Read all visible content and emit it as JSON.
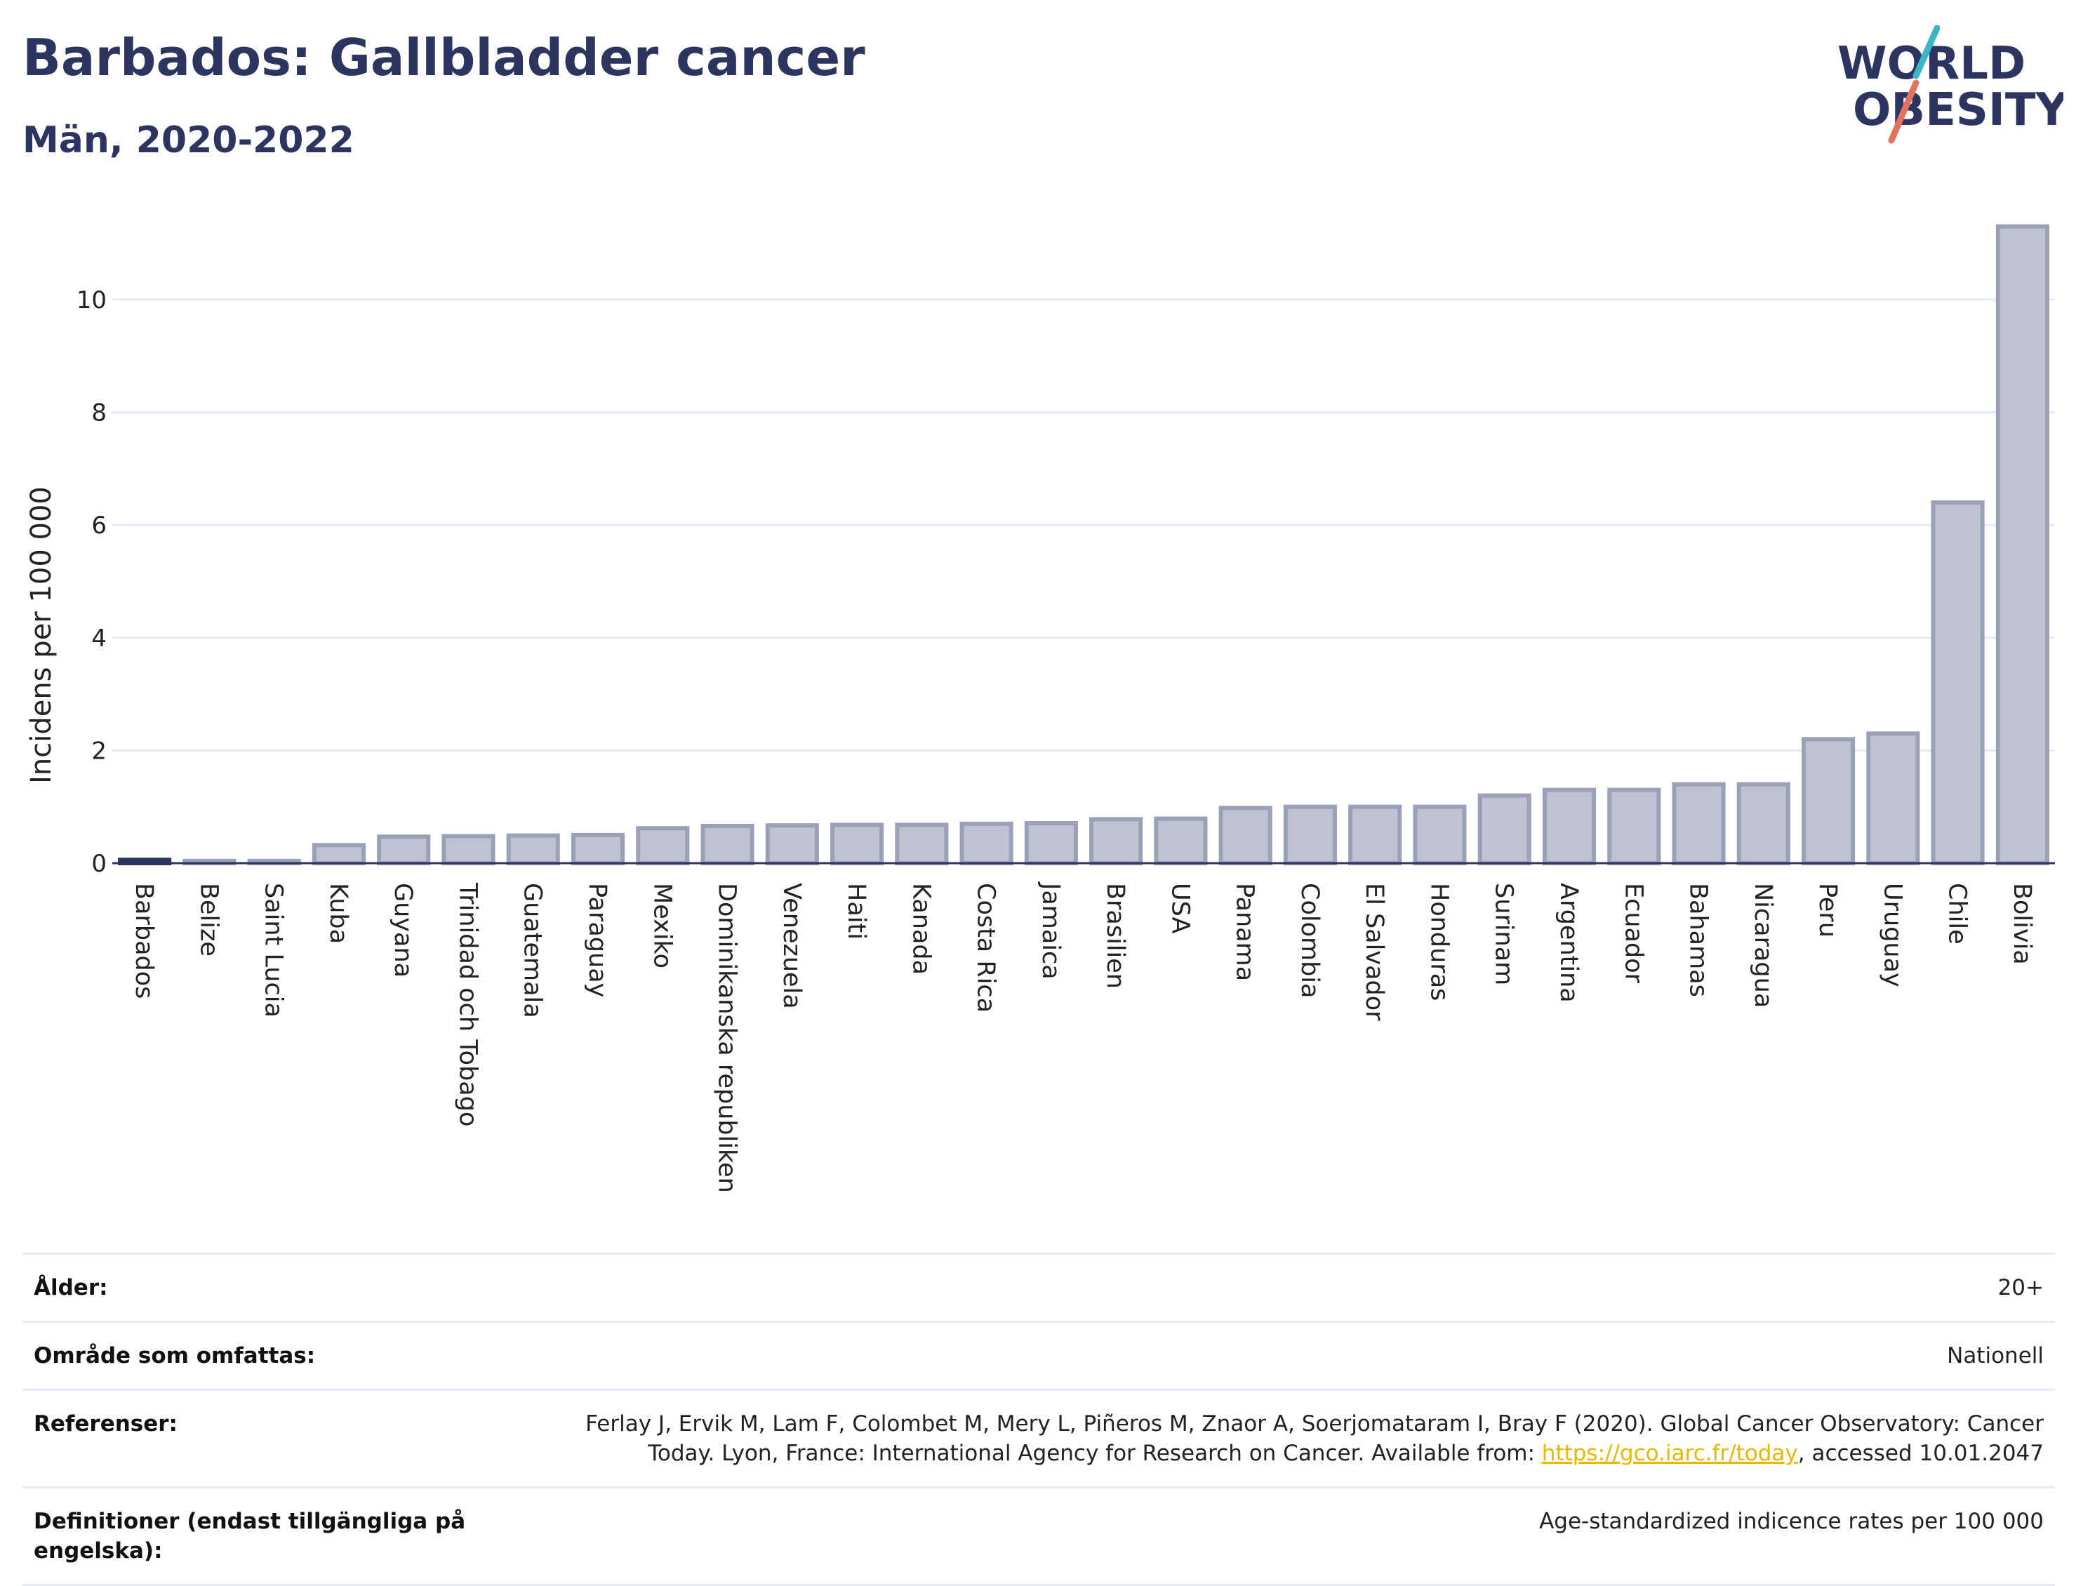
{
  "header": {
    "title": "Barbados: Gallbladder cancer",
    "subtitle": "Män, 2020-2022"
  },
  "logo": {
    "line1": "WORLD",
    "line2": "OBESITY",
    "accent_teal": "#3cb6c2",
    "accent_coral": "#e2735f",
    "text_color": "#2b3560"
  },
  "chart_data": {
    "type": "bar",
    "title": "Barbados: Gallbladder cancer",
    "subtitle": "Män, 2020-2022",
    "ylabel": "Incidens per 100 000",
    "xlabel": "",
    "ylim": [
      0,
      11.5
    ],
    "yticks": [
      0,
      2,
      4,
      6,
      8,
      10
    ],
    "grid": true,
    "highlight": "Barbados",
    "highlight_color": "#2b3560",
    "bar_color": "#bfc2d1",
    "bar_edge_color": "#9ba0b8",
    "categories": [
      "Barbados",
      "Belize",
      "Saint Lucia",
      "Kuba",
      "Guyana",
      "Trinidad och Tobago",
      "Guatemala",
      "Paraguay",
      "Mexiko",
      "Dominikanska republiken",
      "Venezuela",
      "Haiti",
      "Kanada",
      "Costa Rica",
      "Jamaica",
      "Brasilien",
      "USA",
      "Panama",
      "Colombia",
      "El Salvador",
      "Honduras",
      "Surinam",
      "Argentina",
      "Ecuador",
      "Bahamas",
      "Nicaragua",
      "Peru",
      "Uruguay",
      "Chile",
      "Bolivia"
    ],
    "values": [
      0.06,
      0.04,
      0.04,
      0.32,
      0.47,
      0.48,
      0.49,
      0.5,
      0.62,
      0.66,
      0.67,
      0.68,
      0.68,
      0.7,
      0.71,
      0.78,
      0.79,
      0.98,
      1.0,
      1.0,
      1.0,
      1.2,
      1.3,
      1.3,
      1.4,
      1.4,
      2.2,
      2.3,
      6.4,
      11.3
    ]
  },
  "info": {
    "rows": [
      {
        "label": "Ålder:",
        "value": "20+"
      },
      {
        "label": "Område som omfattas:",
        "value": "Nationell"
      },
      {
        "label": "Referenser:",
        "value_pre": "Ferlay J, Ervik M, Lam F, Colombet M, Mery L, Piñeros M, Znaor A, Soerjomataram I, Bray F (2020). Global Cancer Observatory: Cancer Today. Lyon, France: International Agency for Research on Cancer. Available from: ",
        "link": "https://gco.iarc.fr/today",
        "value_post": ", accessed 10.01.2047"
      },
      {
        "label": "Definitioner (endast tillgängliga på engelska):",
        "value": "Age-standardized indicence rates per 100 000"
      }
    ]
  }
}
